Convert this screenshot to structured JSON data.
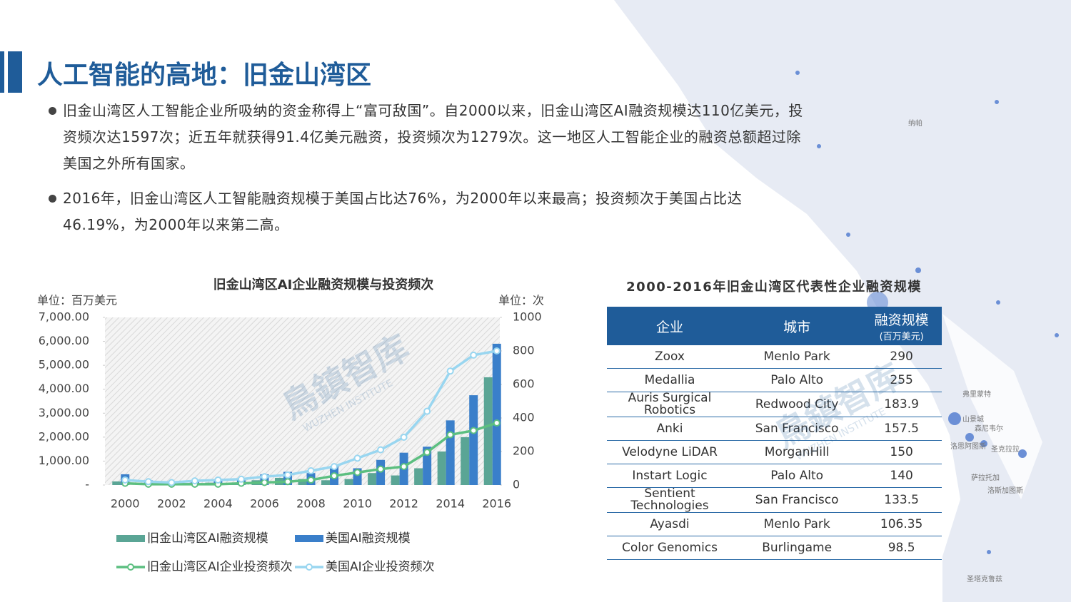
{
  "header": {
    "title": "人工智能的高地：旧金山湾区"
  },
  "bullets": [
    "旧金山湾区人工智能企业所吸纳的资金称得上“富可敌国”。自2000以来，旧金山湾区AI融资规模达110亿美元，投资频次达1597次；近五年就获得91.4亿美元融资，投资频次为1279次。这一地区人工智能企业的融资总额超过除美国之外所有国家。",
    "2016年，旧金山湾区人工智能融资规模于美国占比达76%，为2000年以来最高；投资频次于美国占比达46.19%，为2000年以来第二高。"
  ],
  "chart_data": {
    "type": "bar",
    "title": "旧金山湾区AI企业融资规模与投资频次",
    "y_unit": "单位：百万美元",
    "y2_unit": "单位：次",
    "categories": [
      "2000",
      null,
      "2002",
      null,
      "2004",
      null,
      "2006",
      null,
      "2008",
      null,
      "2010",
      null,
      "2012",
      null,
      "2014",
      null,
      "2016"
    ],
    "series": [
      {
        "name": "旧金山湾区AI融资规模",
        "type": "bar",
        "color": "#5aa595",
        "values": [
          150,
          80,
          60,
          80,
          100,
          80,
          200,
          300,
          250,
          200,
          250,
          500,
          400,
          700,
          1400,
          2000,
          4500
        ]
      },
      {
        "name": "美国AI融资规模",
        "type": "bar",
        "color": "#3a7fca",
        "values": [
          450,
          200,
          150,
          200,
          250,
          200,
          450,
          550,
          500,
          800,
          700,
          1050,
          1350,
          1600,
          2700,
          3750,
          5900
        ]
      },
      {
        "name": "旧金山湾区AI企业投资频次",
        "type": "line",
        "axis": "y2",
        "color": "#5cbf80",
        "values": [
          10,
          5,
          5,
          5,
          5,
          10,
          15,
          20,
          30,
          55,
          75,
          95,
          110,
          195,
          300,
          325,
          370
        ]
      },
      {
        "name": "美国AI企业投资频次",
        "type": "line",
        "axis": "y2",
        "color": "#99d6f0",
        "values": [
          30,
          20,
          15,
          25,
          30,
          35,
          50,
          60,
          85,
          110,
          160,
          210,
          285,
          440,
          680,
          775,
          800
        ]
      }
    ],
    "ylim": [
      0,
      7000
    ],
    "yticks": [
      {
        "value": 0,
        "label": "-"
      },
      {
        "value": 1000,
        "label": "1,000.00"
      },
      {
        "value": 2000,
        "label": "2,000.00"
      },
      {
        "value": 3000,
        "label": "3,000.00"
      },
      {
        "value": 4000,
        "label": "4,000.00"
      },
      {
        "value": 5000,
        "label": "5,000.00"
      },
      {
        "value": 6000,
        "label": "6,000.00"
      },
      {
        "value": 7000,
        "label": "7,000.00"
      }
    ],
    "y2lim": [
      0,
      1000
    ],
    "y2ticks": [
      0,
      200,
      400,
      600,
      800,
      1000
    ]
  },
  "table": {
    "title": "2000-2016年旧金山湾区代表性企业融资规模",
    "header": [
      "企业",
      "城市",
      "融资规模",
      "(百万美元)"
    ],
    "rows": [
      [
        "Zoox",
        "Menlo Park",
        "290"
      ],
      [
        "Medallia",
        "Palo Alto",
        "255"
      ],
      [
        "Auris Surgical Robotics",
        "Redwood City",
        "183.9"
      ],
      [
        "Anki",
        "San Francisco",
        "157.5"
      ],
      [
        "Velodyne LiDAR",
        "MorganHill",
        "150"
      ],
      [
        "Instart Logic",
        "Palo Alto",
        "140"
      ],
      [
        "Sentient Technologies",
        "San Francisco",
        "133.5"
      ],
      [
        "Ayasdi",
        "Menlo Park",
        "106.35"
      ],
      [
        "Color Genomics",
        "Burlingame",
        "98.5"
      ]
    ]
  },
  "watermark": {
    "name": "鳥鎮智库",
    "sub": "WUZHEN INSTITUTE"
  },
  "map": {
    "labels": [
      "纳帕",
      "弗里蒙特",
      "山景城",
      "森尼韦尔",
      "洛思阿图斯",
      "圣克拉拉",
      "萨拉托加",
      "洛斯加图斯",
      "圣塔克鲁兹"
    ]
  }
}
